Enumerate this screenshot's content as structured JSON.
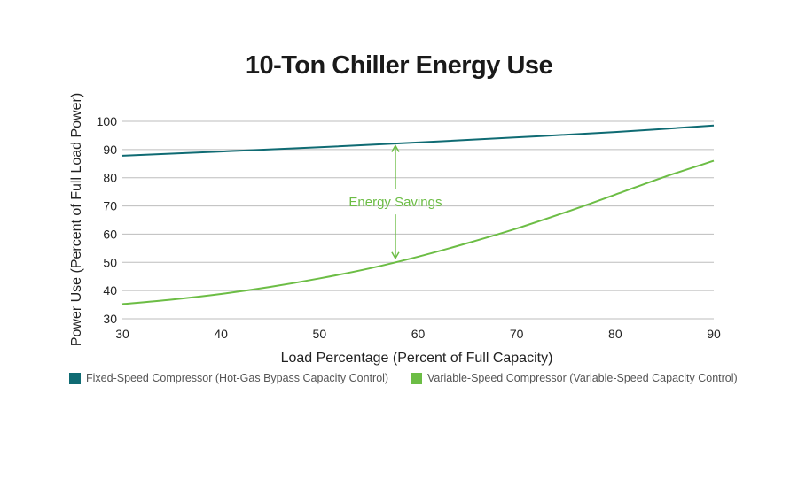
{
  "chart_data": {
    "type": "line",
    "title": "10-Ton Chiller Energy Use",
    "xlabel": "Load Percentage (Percent of Full Capacity)",
    "ylabel": "Power Use (Percent of Full Load Power)",
    "xlim": [
      30,
      90
    ],
    "ylim": [
      30,
      100
    ],
    "xticks": [
      30,
      40,
      50,
      60,
      70,
      80,
      90
    ],
    "yticks": [
      30,
      40,
      50,
      60,
      70,
      80,
      90,
      100
    ],
    "grid": true,
    "legend_position": "bottom",
    "series": [
      {
        "name": "Fixed-Speed Compressor (Hot-Gas Bypass Capacity Control)",
        "color": "#0f6b73",
        "x": [
          30,
          40,
          50,
          60,
          70,
          80,
          90
        ],
        "y": [
          87.8,
          89.3,
          90.8,
          92.5,
          94.3,
          96.2,
          98.5
        ]
      },
      {
        "name": "Variable-Speed Compressor (Variable-Speed Capacity Control)",
        "color": "#6cbd45",
        "x": [
          30,
          35,
          40,
          45,
          50,
          55,
          60,
          65,
          70,
          75,
          80,
          85,
          90
        ],
        "y": [
          35.2,
          36.8,
          38.8,
          41.3,
          44.3,
          47.8,
          52.0,
          56.8,
          62.0,
          67.8,
          74.0,
          80.3,
          86.0
        ]
      }
    ],
    "annotation": {
      "text": "Energy Savings",
      "x": 57.7,
      "y_from": 50.5,
      "y_to": 92.3,
      "color": "#6cbd45"
    }
  }
}
